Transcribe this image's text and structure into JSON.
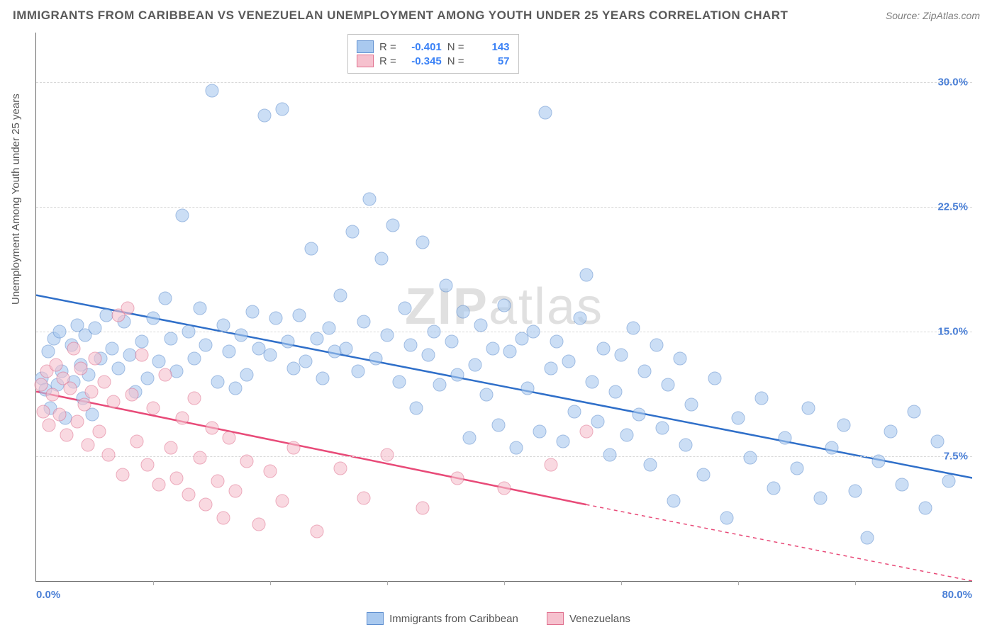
{
  "title": "IMMIGRANTS FROM CARIBBEAN VS VENEZUELAN UNEMPLOYMENT AMONG YOUTH UNDER 25 YEARS CORRELATION CHART",
  "source": "Source: ZipAtlas.com",
  "watermark_bold": "ZIP",
  "watermark_light": "atlas",
  "y_axis_label": "Unemployment Among Youth under 25 years",
  "chart": {
    "type": "scatter",
    "xlim": [
      0,
      80
    ],
    "ylim": [
      0,
      33
    ],
    "x_ticks": [
      0,
      80
    ],
    "x_tick_labels": [
      "0.0%",
      "80.0%"
    ],
    "x_minor_ticks": [
      10,
      20,
      30,
      40,
      50,
      60,
      70
    ],
    "y_ticks": [
      7.5,
      15.0,
      22.5,
      30.0
    ],
    "y_tick_labels": [
      "7.5%",
      "15.0%",
      "22.5%",
      "30.0%"
    ],
    "y_tick_color": "#4a7fd6",
    "x_tick_color": "#4a7fd6",
    "grid_color": "#d8d8d8",
    "background": "#ffffff",
    "point_radius": 8.5,
    "series": [
      {
        "name": "Immigrants from Caribbean",
        "fill": "#a9c9ef",
        "stroke": "#5f8fd0",
        "R": "-0.401",
        "N": "143",
        "trend": {
          "x1": 0,
          "y1": 17.2,
          "x2": 80,
          "y2": 6.2,
          "color": "#2f6fc9",
          "width": 2.5
        },
        "points": [
          [
            0.5,
            12.2
          ],
          [
            0.8,
            11.5
          ],
          [
            1.0,
            13.8
          ],
          [
            1.2,
            10.4
          ],
          [
            1.5,
            14.6
          ],
          [
            1.8,
            11.8
          ],
          [
            2.0,
            15.0
          ],
          [
            2.2,
            12.6
          ],
          [
            2.5,
            9.8
          ],
          [
            3.0,
            14.2
          ],
          [
            3.2,
            12.0
          ],
          [
            3.5,
            15.4
          ],
          [
            3.8,
            13.0
          ],
          [
            4.0,
            11.0
          ],
          [
            4.2,
            14.8
          ],
          [
            4.5,
            12.4
          ],
          [
            4.8,
            10.0
          ],
          [
            5.0,
            15.2
          ],
          [
            5.5,
            13.4
          ],
          [
            6.0,
            16.0
          ],
          [
            6.5,
            14.0
          ],
          [
            7.0,
            12.8
          ],
          [
            7.5,
            15.6
          ],
          [
            8.0,
            13.6
          ],
          [
            8.5,
            11.4
          ],
          [
            9.0,
            14.4
          ],
          [
            9.5,
            12.2
          ],
          [
            10.0,
            15.8
          ],
          [
            10.5,
            13.2
          ],
          [
            11.0,
            17.0
          ],
          [
            11.5,
            14.6
          ],
          [
            12.0,
            12.6
          ],
          [
            12.5,
            22.0
          ],
          [
            13.0,
            15.0
          ],
          [
            13.5,
            13.4
          ],
          [
            14.0,
            16.4
          ],
          [
            14.5,
            14.2
          ],
          [
            15.0,
            29.5
          ],
          [
            15.5,
            12.0
          ],
          [
            16.0,
            15.4
          ],
          [
            16.5,
            13.8
          ],
          [
            17.0,
            11.6
          ],
          [
            17.5,
            14.8
          ],
          [
            18.0,
            12.4
          ],
          [
            18.5,
            16.2
          ],
          [
            19.0,
            14.0
          ],
          [
            19.5,
            28.0
          ],
          [
            20.0,
            13.6
          ],
          [
            20.5,
            15.8
          ],
          [
            21.0,
            28.4
          ],
          [
            21.5,
            14.4
          ],
          [
            22.0,
            12.8
          ],
          [
            22.5,
            16.0
          ],
          [
            23.0,
            13.2
          ],
          [
            23.5,
            20.0
          ],
          [
            24.0,
            14.6
          ],
          [
            24.5,
            12.2
          ],
          [
            25.0,
            15.2
          ],
          [
            25.5,
            13.8
          ],
          [
            26.0,
            17.2
          ],
          [
            26.5,
            14.0
          ],
          [
            27.0,
            21.0
          ],
          [
            27.5,
            12.6
          ],
          [
            28.0,
            15.6
          ],
          [
            28.5,
            23.0
          ],
          [
            29.0,
            13.4
          ],
          [
            29.5,
            19.4
          ],
          [
            30.0,
            14.8
          ],
          [
            30.5,
            21.4
          ],
          [
            31.0,
            12.0
          ],
          [
            31.5,
            16.4
          ],
          [
            32.0,
            14.2
          ],
          [
            32.5,
            10.4
          ],
          [
            33.0,
            20.4
          ],
          [
            33.5,
            13.6
          ],
          [
            34.0,
            15.0
          ],
          [
            34.5,
            11.8
          ],
          [
            35.0,
            17.8
          ],
          [
            35.5,
            14.4
          ],
          [
            36.0,
            12.4
          ],
          [
            36.5,
            16.2
          ],
          [
            37.0,
            8.6
          ],
          [
            37.5,
            13.0
          ],
          [
            38.0,
            15.4
          ],
          [
            38.5,
            11.2
          ],
          [
            39.0,
            14.0
          ],
          [
            39.5,
            9.4
          ],
          [
            40.0,
            16.6
          ],
          [
            40.5,
            13.8
          ],
          [
            41.0,
            8.0
          ],
          [
            41.5,
            14.6
          ],
          [
            42.0,
            11.6
          ],
          [
            42.5,
            15.0
          ],
          [
            43.0,
            9.0
          ],
          [
            43.5,
            28.2
          ],
          [
            44.0,
            12.8
          ],
          [
            44.5,
            14.4
          ],
          [
            45.0,
            8.4
          ],
          [
            45.5,
            13.2
          ],
          [
            46.0,
            10.2
          ],
          [
            46.5,
            15.8
          ],
          [
            47.0,
            18.4
          ],
          [
            47.5,
            12.0
          ],
          [
            48.0,
            9.6
          ],
          [
            48.5,
            14.0
          ],
          [
            49.0,
            7.6
          ],
          [
            49.5,
            11.4
          ],
          [
            50.0,
            13.6
          ],
          [
            50.5,
            8.8
          ],
          [
            51.0,
            15.2
          ],
          [
            51.5,
            10.0
          ],
          [
            52.0,
            12.6
          ],
          [
            52.5,
            7.0
          ],
          [
            53.0,
            14.2
          ],
          [
            53.5,
            9.2
          ],
          [
            54.0,
            11.8
          ],
          [
            54.5,
            4.8
          ],
          [
            55.0,
            13.4
          ],
          [
            55.5,
            8.2
          ],
          [
            56.0,
            10.6
          ],
          [
            57.0,
            6.4
          ],
          [
            58.0,
            12.2
          ],
          [
            59.0,
            3.8
          ],
          [
            60.0,
            9.8
          ],
          [
            61.0,
            7.4
          ],
          [
            62.0,
            11.0
          ],
          [
            63.0,
            5.6
          ],
          [
            64.0,
            8.6
          ],
          [
            65.0,
            6.8
          ],
          [
            66.0,
            10.4
          ],
          [
            67.0,
            5.0
          ],
          [
            68.0,
            8.0
          ],
          [
            69.0,
            9.4
          ],
          [
            70.0,
            5.4
          ],
          [
            71.0,
            2.6
          ],
          [
            72.0,
            7.2
          ],
          [
            73.0,
            9.0
          ],
          [
            74.0,
            5.8
          ],
          [
            75.0,
            10.2
          ],
          [
            76.0,
            4.4
          ],
          [
            77.0,
            8.4
          ],
          [
            78.0,
            6.0
          ]
        ]
      },
      {
        "name": "Venezuelans",
        "fill": "#f6c1ce",
        "stroke": "#e0718f",
        "R": "-0.345",
        "N": "57",
        "trend": {
          "x1": 0,
          "y1": 11.4,
          "x2": 47,
          "y2": 4.6,
          "color": "#e84a78",
          "width": 2.5,
          "dash_from_x": 47,
          "dash_to_x": 80,
          "dash_y2": 0.0
        },
        "points": [
          [
            0.4,
            11.8
          ],
          [
            0.6,
            10.2
          ],
          [
            0.9,
            12.6
          ],
          [
            1.1,
            9.4
          ],
          [
            1.4,
            11.2
          ],
          [
            1.7,
            13.0
          ],
          [
            2.0,
            10.0
          ],
          [
            2.3,
            12.2
          ],
          [
            2.6,
            8.8
          ],
          [
            2.9,
            11.6
          ],
          [
            3.2,
            14.0
          ],
          [
            3.5,
            9.6
          ],
          [
            3.8,
            12.8
          ],
          [
            4.1,
            10.6
          ],
          [
            4.4,
            8.2
          ],
          [
            4.7,
            11.4
          ],
          [
            5.0,
            13.4
          ],
          [
            5.4,
            9.0
          ],
          [
            5.8,
            12.0
          ],
          [
            6.2,
            7.6
          ],
          [
            6.6,
            10.8
          ],
          [
            7.0,
            16.0
          ],
          [
            7.4,
            6.4
          ],
          [
            7.8,
            16.4
          ],
          [
            8.2,
            11.2
          ],
          [
            8.6,
            8.4
          ],
          [
            9.0,
            13.6
          ],
          [
            9.5,
            7.0
          ],
          [
            10.0,
            10.4
          ],
          [
            10.5,
            5.8
          ],
          [
            11.0,
            12.4
          ],
          [
            11.5,
            8.0
          ],
          [
            12.0,
            6.2
          ],
          [
            12.5,
            9.8
          ],
          [
            13.0,
            5.2
          ],
          [
            13.5,
            11.0
          ],
          [
            14.0,
            7.4
          ],
          [
            14.5,
            4.6
          ],
          [
            15.0,
            9.2
          ],
          [
            15.5,
            6.0
          ],
          [
            16.0,
            3.8
          ],
          [
            16.5,
            8.6
          ],
          [
            17.0,
            5.4
          ],
          [
            18.0,
            7.2
          ],
          [
            19.0,
            3.4
          ],
          [
            20.0,
            6.6
          ],
          [
            21.0,
            4.8
          ],
          [
            22.0,
            8.0
          ],
          [
            24.0,
            3.0
          ],
          [
            26.0,
            6.8
          ],
          [
            28.0,
            5.0
          ],
          [
            30.0,
            7.6
          ],
          [
            33.0,
            4.4
          ],
          [
            36.0,
            6.2
          ],
          [
            40.0,
            5.6
          ],
          [
            44.0,
            7.0
          ],
          [
            47.0,
            9.0
          ]
        ]
      }
    ]
  },
  "legend_bottom": [
    {
      "label": "Immigrants from Caribbean",
      "fill": "#a9c9ef",
      "stroke": "#5f8fd0"
    },
    {
      "label": "Venezuelans",
      "fill": "#f6c1ce",
      "stroke": "#e0718f"
    }
  ],
  "legend_top_labels": {
    "R": "R =",
    "N": "N ="
  }
}
